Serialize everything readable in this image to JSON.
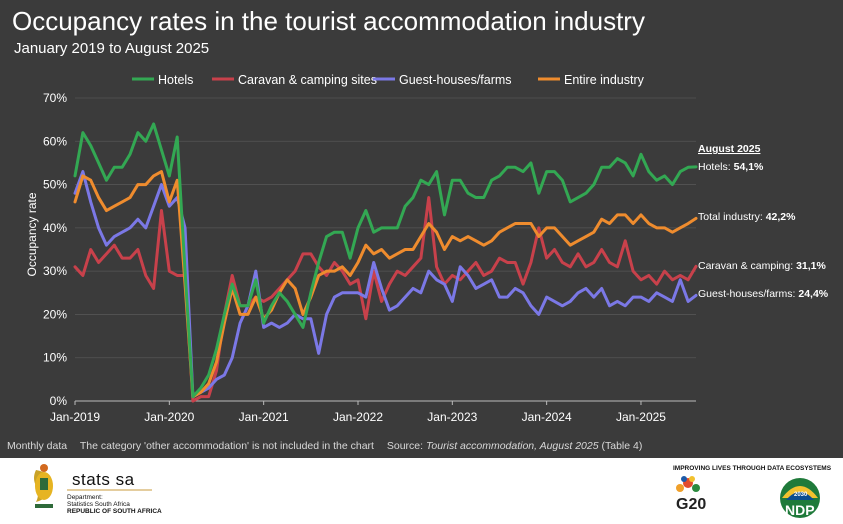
{
  "title": "Occupancy rates in the tourist accommodation industry",
  "subtitle": "January 2019 to August 2025",
  "footnote": {
    "left": "Monthly data",
    "note": "The category 'other accommodation' is not included in the chart",
    "source_prefix": "Source:",
    "source_title": "Tourist accommodation, August 2025",
    "source_suffix": "(Table 4)"
  },
  "annotation": {
    "header": "August 2025",
    "labels": [
      {
        "prefix": "Hotels:",
        "value": "54,1%",
        "series": "Hotels"
      },
      {
        "prefix": "Total industry:",
        "value": "42,2%",
        "series": "Entire industry"
      },
      {
        "prefix": "Caravan & camping:",
        "value": "31,1%",
        "series": "Caravan & camping sites"
      },
      {
        "prefix": "Guest-houses/farms:",
        "value": "24,4%",
        "series": "Guest-houses/farms"
      }
    ]
  },
  "logos": {
    "statssa_name": "stats sa",
    "statssa_line1": "Department:",
    "statssa_line2": "Statistics South Africa",
    "statssa_line3": "REPUBLIC OF SOUTH AFRICA",
    "tagline": "IMPROVING LIVES THROUGH DATA ECOSYSTEMS",
    "g20": "G20",
    "ndp": "NDP",
    "ndp_year": "2030"
  },
  "colors": {
    "background": "#3b3b3b",
    "text": "#ffffff",
    "grid": "#555555",
    "hotels": "#33a853",
    "caravan": "#c8414b",
    "guesthouses": "#7b78e6",
    "entire": "#ef8c2e"
  },
  "chart_data": {
    "type": "line",
    "ylabel": "Occupancy rate",
    "xlabel": "",
    "ylim": [
      0,
      70
    ],
    "yticks": [
      "0%",
      "10%",
      "20%",
      "30%",
      "40%",
      "50%",
      "60%",
      "70%"
    ],
    "xticks": [
      "Jan-2019",
      "Jan-2020",
      "Jan-2021",
      "Jan-2022",
      "Jan-2023",
      "Jan-2024",
      "Jan-2025"
    ],
    "x_start": "Jan-2019",
    "x_end": "Aug-2025",
    "grid": "horizontal",
    "legend_position": "top",
    "series": [
      {
        "name": "Hotels",
        "color": "#33a853",
        "values": [
          52,
          62,
          59,
          55,
          51,
          54,
          54,
          57,
          62,
          60,
          64,
          58,
          52,
          61,
          30,
          1,
          3,
          6,
          12,
          20,
          27,
          22,
          22,
          28,
          18,
          22,
          25,
          23,
          20,
          17,
          25,
          32,
          38,
          39,
          39,
          33,
          40,
          44,
          39,
          40,
          40,
          40,
          45,
          47,
          51,
          50,
          53,
          43,
          51,
          51,
          48,
          47,
          47,
          51,
          52,
          54,
          54,
          53,
          55,
          48,
          53,
          53,
          51,
          46,
          47,
          48,
          50,
          54,
          54,
          56,
          55,
          52,
          57,
          53,
          51,
          52,
          50,
          53,
          54,
          54.1
        ]
      },
      {
        "name": "Caravan & camping sites",
        "color": "#c8414b",
        "values": [
          31,
          29,
          35,
          32,
          34,
          36,
          33,
          33,
          35,
          29,
          26,
          44,
          30,
          29,
          29,
          0,
          1,
          1,
          7,
          20,
          29,
          22,
          22,
          24,
          23,
          24,
          26,
          28,
          30,
          34,
          34,
          31,
          29,
          32,
          30,
          27,
          28,
          19,
          30,
          23,
          27,
          30,
          29,
          31,
          33,
          47,
          31,
          27,
          29,
          28,
          30,
          32,
          29,
          30,
          33,
          32,
          32,
          27,
          32,
          40,
          33,
          35,
          32,
          31,
          34,
          31,
          32,
          35,
          32,
          31,
          37,
          30,
          28,
          29,
          27,
          30,
          28,
          29,
          28,
          31.1
        ]
      },
      {
        "name": "Guest-houses/farms",
        "color": "#7b78e6",
        "values": [
          48,
          53,
          46,
          40,
          36,
          38,
          39,
          40,
          42,
          40,
          45,
          50,
          45,
          47,
          40,
          1,
          2,
          3,
          5,
          6,
          10,
          18,
          22,
          30,
          17,
          18,
          17,
          18,
          20,
          19,
          19,
          11,
          20,
          24,
          25,
          25,
          25,
          24,
          32,
          26,
          21,
          22,
          24,
          26,
          25,
          30,
          28,
          27,
          23,
          31,
          29,
          26,
          27,
          28,
          24,
          24,
          26,
          25,
          22,
          20,
          24,
          23,
          22,
          23,
          25,
          26,
          24,
          26,
          22,
          23,
          22,
          24,
          24,
          23,
          25,
          24,
          23,
          28,
          23,
          24.4
        ]
      },
      {
        "name": "Entire industry",
        "color": "#ef8c2e",
        "values": [
          46,
          52,
          51,
          47,
          44,
          45,
          46,
          47,
          50,
          50,
          52,
          53,
          46,
          51,
          27,
          1,
          2,
          4,
          9,
          18,
          26,
          20,
          20,
          24,
          19,
          21,
          25,
          28,
          26,
          20,
          24,
          29,
          30,
          30,
          31,
          29,
          32,
          36,
          34,
          35,
          33,
          34,
          35,
          35,
          38,
          41,
          39,
          35,
          38,
          37,
          38,
          37,
          36,
          37,
          39,
          40,
          41,
          41,
          41,
          38,
          40,
          40,
          38,
          36,
          37,
          38,
          39,
          42,
          41,
          43,
          43,
          41,
          43,
          41,
          40,
          40,
          39,
          40,
          41,
          42.2
        ]
      }
    ]
  }
}
